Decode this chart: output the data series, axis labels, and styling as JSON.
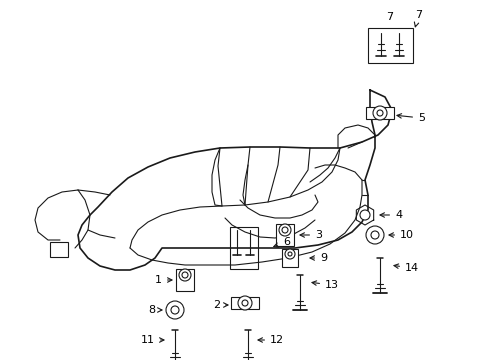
{
  "bg_color": "#ffffff",
  "line_color": "#1a1a1a",
  "label_color": "#000000",
  "lw_main": 1.2,
  "lw_thin": 0.8,
  "label_fs": 8,
  "fig_w": 4.89,
  "fig_h": 3.6,
  "dpi": 100
}
